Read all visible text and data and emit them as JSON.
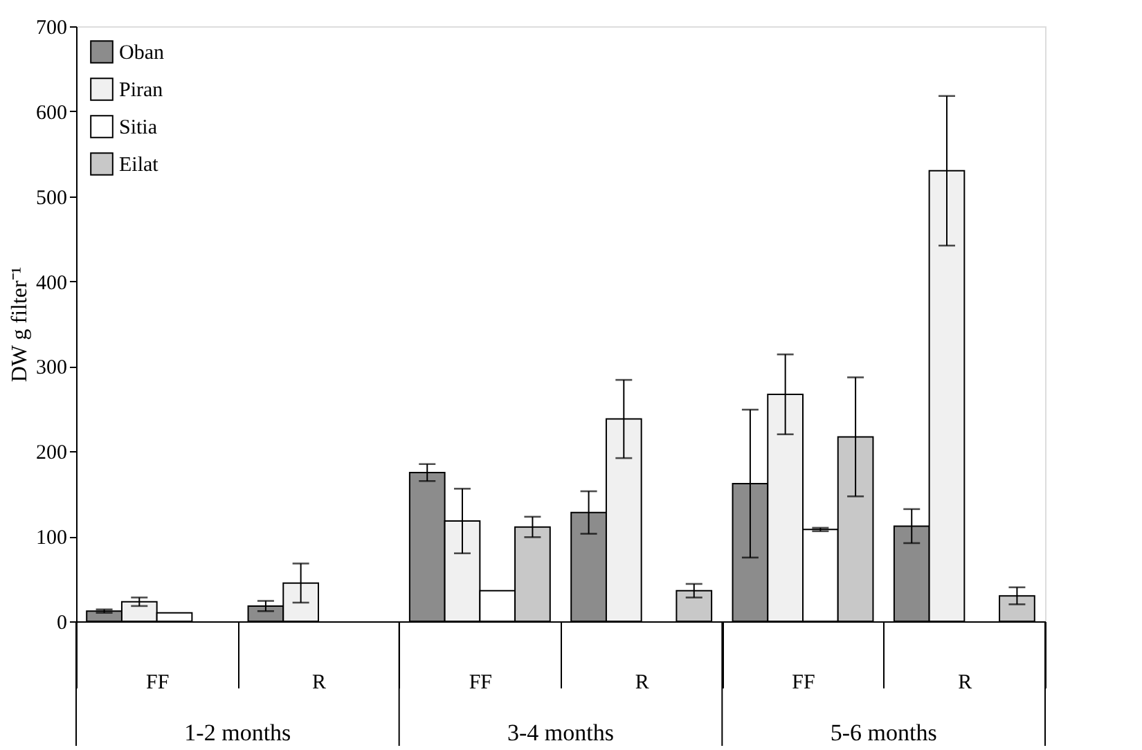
{
  "chart_data": {
    "type": "bar",
    "ylabel": "DW g filter⁻¹",
    "categories": [
      "FF",
      "R",
      "FF",
      "R",
      "FF",
      "R"
    ],
    "series": [
      {
        "name": "Oban",
        "color": "#8c8c8c",
        "values": [
          12,
          18,
          175,
          128,
          162,
          112
        ],
        "errors": [
          2,
          6,
          10,
          25,
          87,
          20
        ]
      },
      {
        "name": "Piran",
        "color": "#f0f0f0",
        "values": [
          23,
          45,
          118,
          238,
          267,
          530
        ],
        "errors": [
          5,
          23,
          38,
          46,
          47,
          88
        ]
      },
      {
        "name": "Sitia",
        "color": "#ffffff",
        "values": [
          10,
          null,
          36,
          null,
          108,
          null
        ],
        "errors": [
          null,
          null,
          null,
          null,
          2,
          null
        ]
      },
      {
        "name": "Eilat",
        "color": "#c8c8c8",
        "values": [
          null,
          null,
          111,
          36,
          217,
          30
        ],
        "errors": [
          null,
          null,
          12,
          8,
          70,
          10
        ]
      }
    ],
    "annotations": [
      "1-2 months",
      "3-4 months",
      "5-6 months"
    ],
    "ylim": [
      0,
      700
    ],
    "yticks": [
      0,
      100,
      200,
      300,
      400,
      500,
      600,
      700
    ],
    "grid": false,
    "legend": "top left"
  }
}
